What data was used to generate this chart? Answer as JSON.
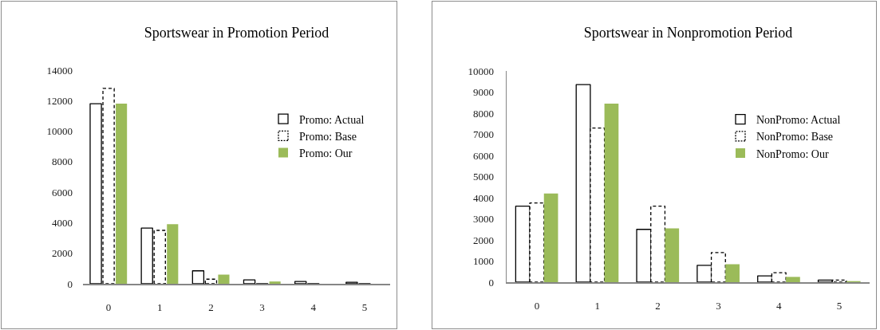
{
  "chart_data": [
    {
      "type": "bar",
      "title": "Sportswear in Promotion Period",
      "categories": [
        "0",
        "1",
        "2",
        "3",
        "4",
        "5"
      ],
      "series": [
        {
          "name": "Promo: Actual",
          "color": "#ffffff",
          "line_style": "solid",
          "values": [
            11800,
            3650,
            850,
            250,
            150,
            100
          ]
        },
        {
          "name": "Promo: Base",
          "color": "#ffffff",
          "colors": [
            "#ffffff",
            "#ffffff",
            "#ffffff",
            "#000000",
            "#000000",
            "#000000"
          ],
          "line_style": "dashed",
          "values": [
            12800,
            3500,
            300,
            0,
            0,
            0
          ]
        },
        {
          "name": "Promo: Our",
          "color": "#9bbb59",
          "values": [
            11800,
            3900,
            600,
            150,
            0,
            0
          ]
        }
      ],
      "ylim": [
        0,
        14000
      ],
      "yticks": [
        0,
        2000,
        4000,
        6000,
        8000,
        10000,
        12000,
        14000
      ],
      "grid": false,
      "legend": "top right"
    },
    {
      "type": "bar",
      "title": "Sportswear in Nonpromotion Period",
      "categories": [
        "0",
        "1",
        "2",
        "3",
        "4",
        "5"
      ],
      "series": [
        {
          "name": "NonPromo: Actual",
          "color": "#ffffff",
          "line_style": "solid",
          "values": [
            3600,
            9350,
            2500,
            800,
            300,
            100
          ]
        },
        {
          "name": "NonPromo: Base",
          "color": "#ffffff",
          "line_style": "dashed",
          "values": [
            3750,
            7300,
            3600,
            1400,
            450,
            100
          ]
        },
        {
          "name": "NonPromo: Our",
          "color": "#9bbb59",
          "values": [
            4200,
            8450,
            2550,
            850,
            250,
            50
          ]
        }
      ],
      "ylim": [
        0,
        10000
      ],
      "yticks": [
        0,
        1000,
        2000,
        3000,
        4000,
        5000,
        6000,
        7000,
        8000,
        9000,
        10000
      ],
      "grid": false,
      "legend": "top right"
    }
  ]
}
